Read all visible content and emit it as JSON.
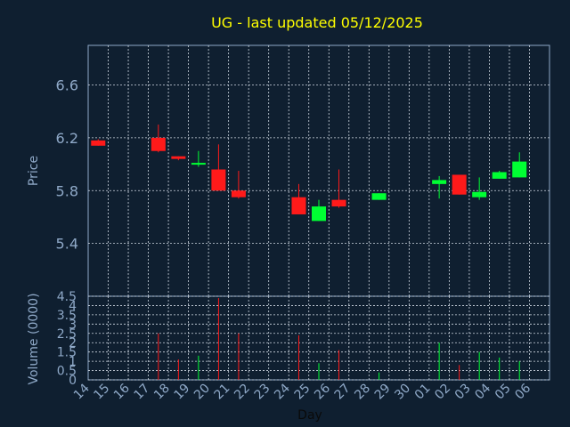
{
  "colors": {
    "background": "#0f1f30",
    "grid": "#cfd8e2",
    "axis_text": "#8fa9c8",
    "title": "#ffff00",
    "up": "#00ff33",
    "down": "#ff1a1a"
  },
  "chart_data": [
    {
      "type": "candlestick",
      "title": "UG - last updated 05/12/2025",
      "ylabel": "Price",
      "ylim": [
        5.0,
        6.9
      ],
      "y_ticks": [
        "5.4",
        "5.8",
        "6.2",
        "6.6"
      ],
      "categories": [
        "14",
        "15",
        "16",
        "17",
        "18",
        "19",
        "20",
        "21",
        "22",
        "23",
        "24",
        "25",
        "26",
        "27",
        "28",
        "29",
        "30",
        "01",
        "02",
        "03",
        "04",
        "05",
        "06"
      ],
      "candles": [
        {
          "day": "14",
          "open": 6.18,
          "high": 6.19,
          "low": 6.14,
          "close": 6.14
        },
        {
          "day": "17",
          "open": 6.2,
          "high": 6.3,
          "low": 6.09,
          "close": 6.1
        },
        {
          "day": "18",
          "open": 6.06,
          "high": 6.06,
          "low": 6.03,
          "close": 6.04
        },
        {
          "day": "19",
          "open": 6.0,
          "high": 6.1,
          "low": 5.98,
          "close": 6.01
        },
        {
          "day": "20",
          "open": 5.96,
          "high": 6.15,
          "low": 5.8,
          "close": 5.8
        },
        {
          "day": "21",
          "open": 5.8,
          "high": 5.95,
          "low": 5.74,
          "close": 5.75
        },
        {
          "day": "24",
          "open": 5.75,
          "high": 5.85,
          "low": 5.62,
          "close": 5.62
        },
        {
          "day": "25",
          "open": 5.57,
          "high": 5.73,
          "low": 5.57,
          "close": 5.68
        },
        {
          "day": "26",
          "open": 5.73,
          "high": 5.96,
          "low": 5.67,
          "close": 5.68
        },
        {
          "day": "28",
          "open": 5.73,
          "high": 5.78,
          "low": 5.73,
          "close": 5.78
        },
        {
          "day": "01",
          "open": 5.85,
          "high": 5.91,
          "low": 5.74,
          "close": 5.88
        },
        {
          "day": "02",
          "open": 5.92,
          "high": 5.92,
          "low": 5.77,
          "close": 5.77
        },
        {
          "day": "03",
          "open": 5.75,
          "high": 5.9,
          "low": 5.73,
          "close": 5.79
        },
        {
          "day": "04",
          "open": 5.89,
          "high": 5.95,
          "low": 5.89,
          "close": 5.94
        },
        {
          "day": "05",
          "open": 5.9,
          "high": 6.09,
          "low": 5.9,
          "close": 6.02
        }
      ]
    },
    {
      "type": "bar",
      "ylabel": "Volume (0000)",
      "xlabel": "Day",
      "ylim": [
        0,
        4.5
      ],
      "y_ticks": [
        "0",
        "0.5",
        "1",
        "1.5",
        "2",
        "2.5",
        "3",
        "3.5",
        "4",
        "4.5"
      ],
      "categories": [
        "14",
        "15",
        "16",
        "17",
        "18",
        "19",
        "20",
        "21",
        "22",
        "23",
        "24",
        "25",
        "26",
        "27",
        "28",
        "29",
        "30",
        "01",
        "02",
        "03",
        "04",
        "05",
        "06"
      ],
      "bars": [
        {
          "day": "14",
          "value": 0.0,
          "direction": "down"
        },
        {
          "day": "17",
          "value": 2.5,
          "direction": "down"
        },
        {
          "day": "18",
          "value": 1.1,
          "direction": "down"
        },
        {
          "day": "19",
          "value": 1.3,
          "direction": "up"
        },
        {
          "day": "20",
          "value": 4.4,
          "direction": "down"
        },
        {
          "day": "21",
          "value": 2.5,
          "direction": "down"
        },
        {
          "day": "24",
          "value": 2.4,
          "direction": "down"
        },
        {
          "day": "25",
          "value": 0.9,
          "direction": "up"
        },
        {
          "day": "26",
          "value": 1.6,
          "direction": "down"
        },
        {
          "day": "28",
          "value": 0.4,
          "direction": "up"
        },
        {
          "day": "01",
          "value": 2.0,
          "direction": "up"
        },
        {
          "day": "02",
          "value": 0.8,
          "direction": "down"
        },
        {
          "day": "03",
          "value": 1.5,
          "direction": "up"
        },
        {
          "day": "04",
          "value": 1.2,
          "direction": "up"
        },
        {
          "day": "05",
          "value": 1.0,
          "direction": "up"
        }
      ]
    }
  ]
}
